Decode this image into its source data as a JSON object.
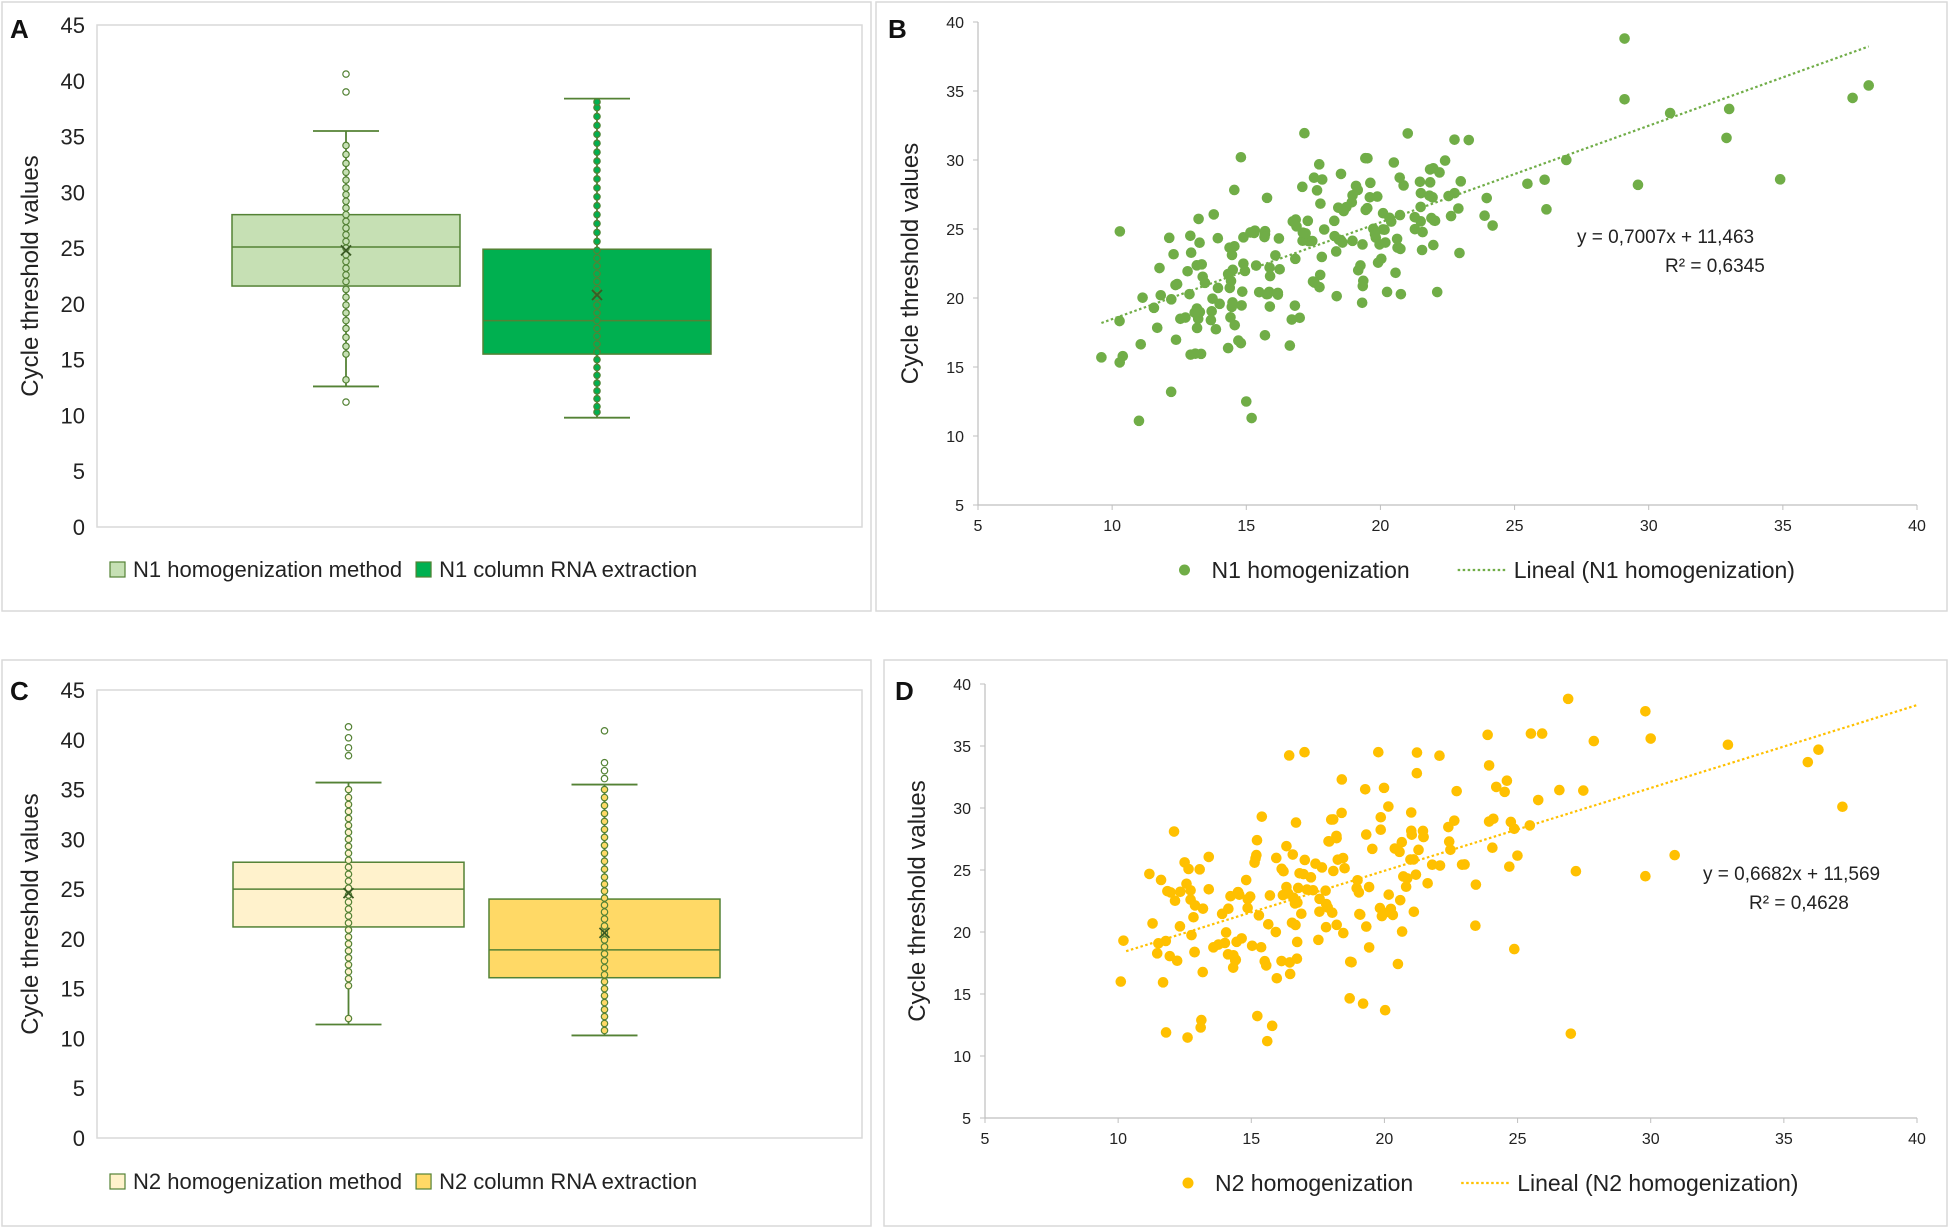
{
  "figure": {
    "panels": [
      "A",
      "B",
      "C",
      "D"
    ]
  },
  "chart_data": [
    {
      "id": "A",
      "type": "box",
      "ylabel": "Cycle threshold values",
      "ylim": [
        0,
        45
      ],
      "yticks": [
        0,
        5,
        10,
        15,
        20,
        25,
        30,
        35,
        40,
        45
      ],
      "legend": [
        "N1 homogenization method",
        "N1 column RNA extraction"
      ],
      "colors": {
        "light": "#c6e0b4",
        "dark": "#00b050",
        "edge": "#548235"
      },
      "boxes": [
        {
          "name": "N1 homogenization method",
          "min": 12.6,
          "q1": 21.6,
          "median": 25.1,
          "q3": 28.0,
          "max": 35.5,
          "mean": 24.8,
          "outliers": [
            11.2,
            39.0,
            40.6
          ],
          "points": [
            13.2,
            15.5,
            16.2,
            17.0,
            17.8,
            18.5,
            19.2,
            19.9,
            20.6,
            21.3,
            22.0,
            22.6,
            23.2,
            23.8,
            24.4,
            25.0,
            25.6,
            26.2,
            26.8,
            27.4,
            28.0,
            28.6,
            29.2,
            29.8,
            30.4,
            31.1,
            31.8,
            32.6,
            33.4,
            34.2
          ]
        },
        {
          "name": "N1 column RNA extraction",
          "min": 9.8,
          "q1": 15.5,
          "median": 18.5,
          "q3": 24.9,
          "max": 38.4,
          "mean": 20.8,
          "outliers": [],
          "points": [
            10.3,
            10.8,
            11.5,
            12.2,
            12.9,
            13.6,
            14.3,
            15.0,
            15.7,
            16.4,
            17.1,
            17.8,
            18.5,
            19.2,
            19.9,
            20.6,
            21.3,
            22.0,
            22.7,
            23.4,
            24.1,
            24.8,
            25.6,
            26.4,
            27.2,
            28.0,
            28.8,
            29.6,
            30.4,
            31.2,
            32.0,
            32.8,
            33.6,
            34.4,
            35.2,
            36.0,
            36.8,
            37.6,
            38.1
          ]
        }
      ]
    },
    {
      "id": "B",
      "type": "scatter",
      "ylabel": "Cycle threshold values",
      "xlim": [
        5,
        40
      ],
      "ylim": [
        5,
        40
      ],
      "xticks": [
        5,
        10,
        15,
        20,
        25,
        30,
        35,
        40
      ],
      "yticks": [
        5,
        10,
        15,
        20,
        25,
        30,
        35,
        40
      ],
      "color": "#70ad47",
      "series_name": "N1 homogenization",
      "trend_name": "Lineal (N1 homogenization)",
      "equation": "y = 0,7007x + 11,463",
      "r2": "R² = 0,6345",
      "trend": {
        "slope": 0.7007,
        "intercept": 11.463,
        "x0": 9.6,
        "x1": 38.2
      },
      "seed": 11,
      "n": 200,
      "noise": 3.1,
      "fixed": [
        [
          9.6,
          15.7
        ],
        [
          11.0,
          11.1
        ],
        [
          12.2,
          13.2
        ],
        [
          15.2,
          11.3
        ],
        [
          15.0,
          12.5
        ],
        [
          14.8,
          30.2
        ],
        [
          29.1,
          38.8
        ],
        [
          37.6,
          34.5
        ],
        [
          38.2,
          35.4
        ],
        [
          34.9,
          28.6
        ],
        [
          33.0,
          33.7
        ],
        [
          32.9,
          31.6
        ],
        [
          29.6,
          28.2
        ],
        [
          30.8,
          33.4
        ],
        [
          29.1,
          34.4
        ]
      ]
    },
    {
      "id": "C",
      "type": "box",
      "ylabel": "Cycle threshold values",
      "ylim": [
        0,
        45
      ],
      "yticks": [
        0,
        5,
        10,
        15,
        20,
        25,
        30,
        35,
        40,
        45
      ],
      "legend": [
        "N2 homogenization method",
        "N2 column RNA extraction"
      ],
      "colors": {
        "light": "#fff2cc",
        "dark": "#ffd966",
        "edge": "#548235"
      },
      "boxes": [
        {
          "name": "N2 homogenization method",
          "min": 11.4,
          "q1": 21.2,
          "median": 25.0,
          "q3": 27.7,
          "max": 35.7,
          "mean": 24.6,
          "outliers": [
            38.4,
            39.2,
            40.2,
            41.3
          ],
          "points": [
            12.0,
            15.3,
            16.0,
            16.7,
            17.4,
            18.1,
            18.8,
            19.5,
            20.2,
            20.9,
            21.6,
            22.3,
            23.0,
            23.7,
            24.4,
            25.1,
            25.8,
            26.5,
            27.2,
            27.9,
            28.6,
            29.3,
            30.0,
            30.7,
            31.4,
            32.1,
            32.8,
            33.5,
            34.2,
            35.0
          ]
        },
        {
          "name": "N2 column RNA extraction",
          "min": 10.3,
          "q1": 16.1,
          "median": 18.9,
          "q3": 24.0,
          "max": 35.5,
          "mean": 20.6,
          "outliers": [
            36.1,
            36.9,
            37.7,
            40.9
          ],
          "points": [
            10.8,
            11.5,
            12.2,
            12.9,
            13.6,
            14.3,
            15.0,
            15.7,
            16.4,
            17.1,
            17.8,
            18.5,
            19.2,
            19.9,
            20.6,
            21.3,
            22.0,
            22.7,
            23.4,
            24.1,
            24.8,
            25.5,
            26.2,
            27.0,
            27.8,
            28.6,
            29.4,
            30.2,
            31.0,
            31.8,
            32.6,
            33.4,
            34.2,
            35.0
          ]
        }
      ]
    },
    {
      "id": "D",
      "type": "scatter",
      "ylabel": "Cycle threshold values",
      "xlim": [
        5,
        40
      ],
      "ylim": [
        5,
        40
      ],
      "xticks": [
        5,
        10,
        15,
        20,
        25,
        30,
        35,
        40
      ],
      "yticks": [
        5,
        10,
        15,
        20,
        25,
        30,
        35,
        40
      ],
      "color": "#ffc000",
      "series_name": "N2 homogenization",
      "trend_name": "Lineal (N2 homogenization)",
      "equation": "y = 0,6682x + 11,569",
      "r2": "R² = 0,4628",
      "trend": {
        "slope": 0.6682,
        "intercept": 11.569,
        "x0": 10.3,
        "x1": 40.0
      },
      "seed": 23,
      "n": 200,
      "noise": 3.8,
      "fixed": [
        [
          11.8,
          11.9
        ],
        [
          13.1,
          12.3
        ],
        [
          15.6,
          11.2
        ],
        [
          27.0,
          11.8
        ],
        [
          17.0,
          34.5
        ],
        [
          26.9,
          38.8
        ],
        [
          18.4,
          32.3
        ],
        [
          29.8,
          37.8
        ],
        [
          30.0,
          35.6
        ],
        [
          32.9,
          35.1
        ],
        [
          35.9,
          33.7
        ],
        [
          36.3,
          34.7
        ],
        [
          37.2,
          30.1
        ],
        [
          29.8,
          24.5
        ],
        [
          30.9,
          26.2
        ],
        [
          10.2,
          19.3
        ],
        [
          10.1,
          16.0
        ],
        [
          12.1,
          28.1
        ],
        [
          24.2,
          31.7
        ],
        [
          24.6,
          32.2
        ]
      ]
    }
  ]
}
